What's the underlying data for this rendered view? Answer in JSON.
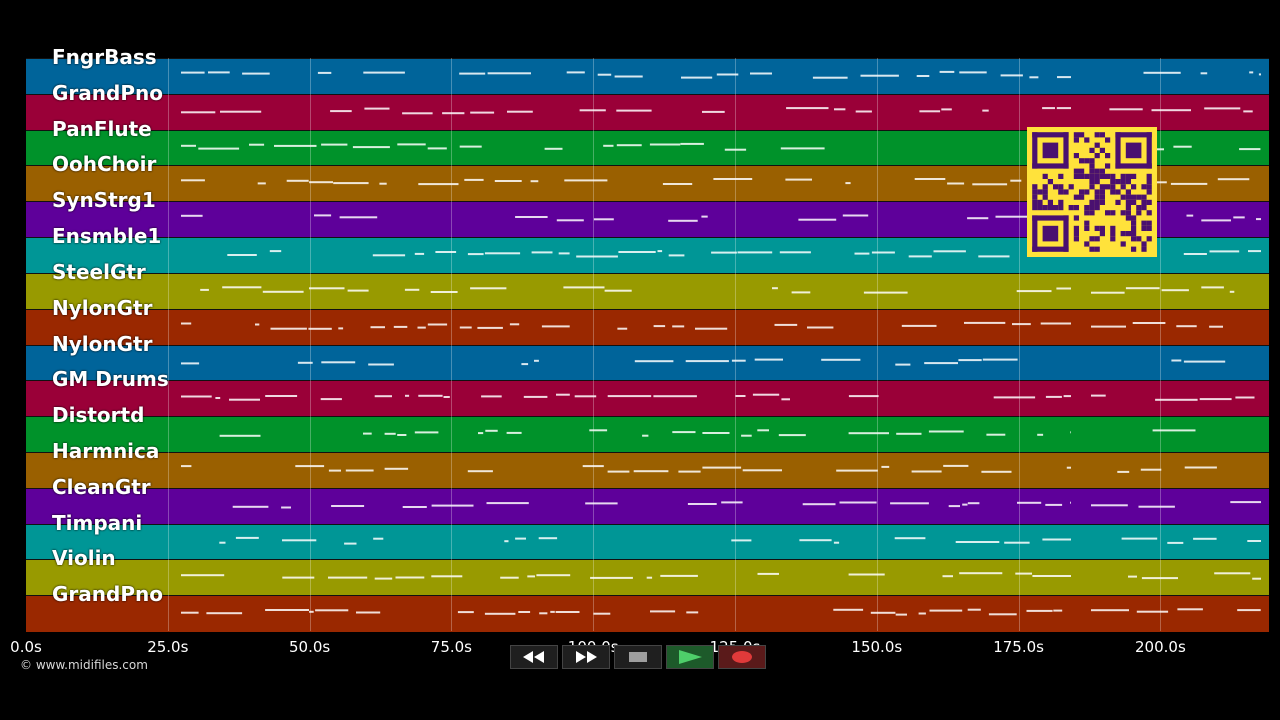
{
  "tracks": [
    {
      "name": "FngrBass",
      "color": "#00649a"
    },
    {
      "name": "GrandPno",
      "color": "#9a0038"
    },
    {
      "name": "PanFlute",
      "color": "#00922a"
    },
    {
      "name": "OohChoir",
      "color": "#9a6000"
    },
    {
      "name": "SynStrg1",
      "color": "#5e009a"
    },
    {
      "name": "Ensmble1",
      "color": "#009696"
    },
    {
      "name": "SteelGtr",
      "color": "#989a00"
    },
    {
      "name": "NylonGtr",
      "color": "#9a2800"
    },
    {
      "name": "NylonGtr",
      "color": "#00649a"
    },
    {
      "name": "GM Drums",
      "color": "#9a0038"
    },
    {
      "name": "Distortd",
      "color": "#00922a"
    },
    {
      "name": "Harmnica",
      "color": "#9a6000"
    },
    {
      "name": "CleanGtr",
      "color": "#5e009a"
    },
    {
      "name": "Timpani",
      "color": "#009696"
    },
    {
      "name": "Violin",
      "color": "#989a00"
    },
    {
      "name": "GrandPno",
      "color": "#9a2800"
    }
  ],
  "timeline": {
    "ticks": [
      "0.0s",
      "25.0s",
      "50.0s",
      "75.0s",
      "100.0s",
      "125.0s",
      "150.0s",
      "175.0s",
      "200.0s"
    ]
  },
  "copyright": "© www.midifiles.com",
  "transport": {
    "rewind_icon": "rewind-icon",
    "fastforward_icon": "fast-forward-icon",
    "stop_icon": "stop-icon",
    "play_icon": "play-icon",
    "record_icon": "record-icon"
  },
  "qr_icon": "qr-code-icon"
}
